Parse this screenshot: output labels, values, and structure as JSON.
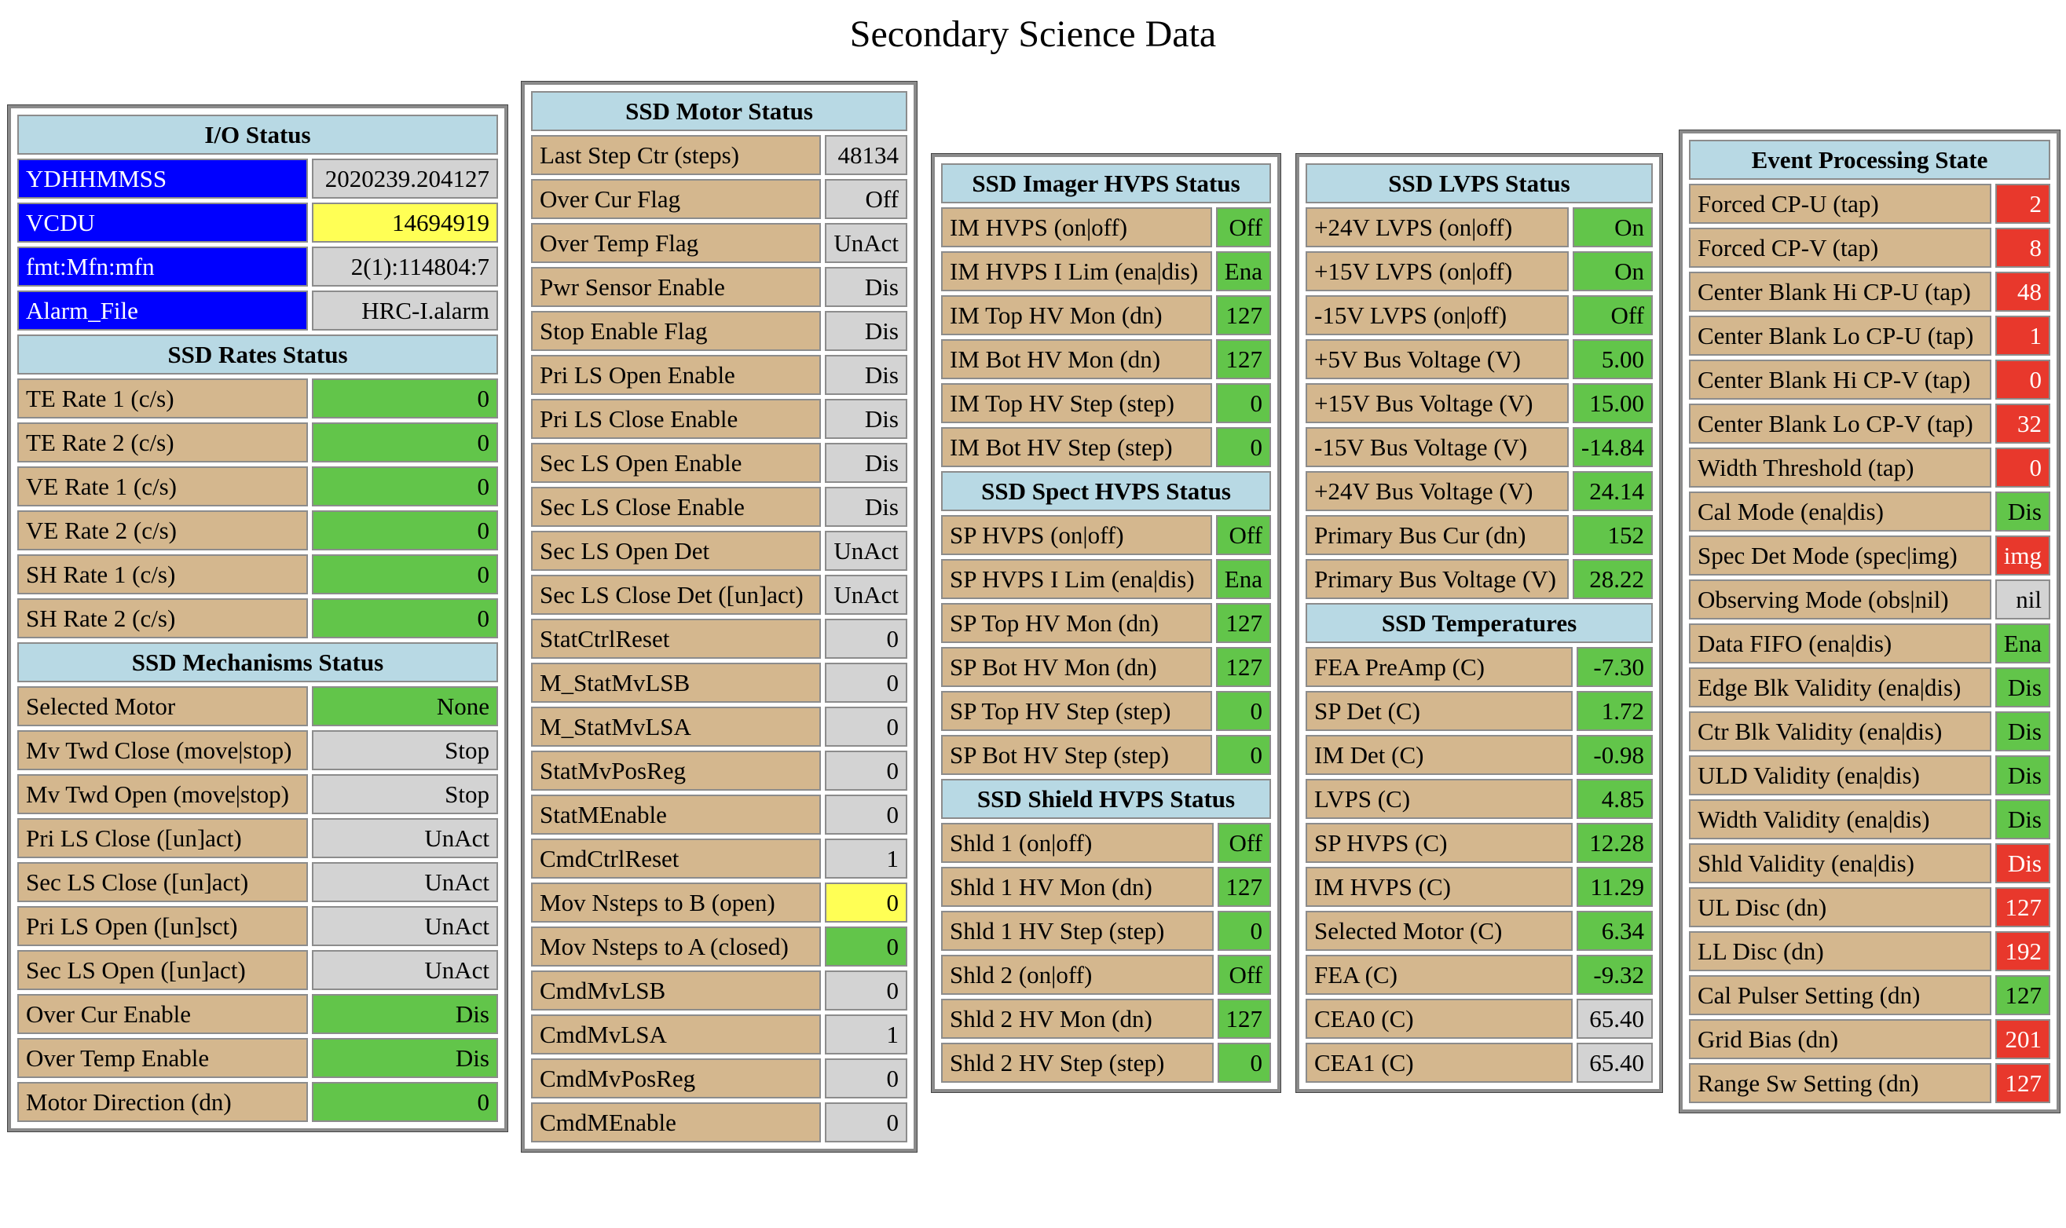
{
  "page_title": "Secondary Science Data",
  "io_status": {
    "header": "I/O Status",
    "rows": [
      {
        "label": "YDHHMMSS",
        "value": "2020239.204127",
        "label_style": "blue",
        "status": "gray"
      },
      {
        "label": "VCDU",
        "value": "14694919",
        "label_style": "blue",
        "status": "yellow"
      },
      {
        "label": "fmt:Mfn:mfn",
        "value": "2(1):114804:7",
        "label_style": "blue",
        "status": "gray"
      },
      {
        "label": "Alarm_File",
        "value": "HRC-I.alarm",
        "label_style": "blue",
        "status": "gray"
      }
    ]
  },
  "rates_status": {
    "header": "SSD Rates Status",
    "rows": [
      {
        "label": "TE Rate 1 (c/s)",
        "value": "0",
        "status": "green"
      },
      {
        "label": "TE Rate 2 (c/s)",
        "value": "0",
        "status": "green"
      },
      {
        "label": "VE Rate 1 (c/s)",
        "value": "0",
        "status": "green"
      },
      {
        "label": "VE Rate 2 (c/s)",
        "value": "0",
        "status": "green"
      },
      {
        "label": "SH Rate 1 (c/s)",
        "value": "0",
        "status": "green"
      },
      {
        "label": "SH Rate 2 (c/s)",
        "value": "0",
        "status": "green"
      }
    ]
  },
  "mechanisms_status": {
    "header": "SSD Mechanisms Status",
    "rows": [
      {
        "label": "Selected Motor",
        "value": "None",
        "status": "green"
      },
      {
        "label": "Mv Twd Close (move|stop)",
        "value": "Stop",
        "status": "gray"
      },
      {
        "label": "Mv Twd Open (move|stop)",
        "value": "Stop",
        "status": "gray"
      },
      {
        "label": "Pri LS Close ([un]act)",
        "value": "UnAct",
        "status": "gray"
      },
      {
        "label": "Sec LS Close ([un]act)",
        "value": "UnAct",
        "status": "gray"
      },
      {
        "label": "Pri LS Open ([un]sct)",
        "value": "UnAct",
        "status": "gray"
      },
      {
        "label": "Sec LS Open ([un]act)",
        "value": "UnAct",
        "status": "gray"
      },
      {
        "label": "Over Cur Enable",
        "value": "Dis",
        "status": "green"
      },
      {
        "label": "Over Temp Enable",
        "value": "Dis",
        "status": "green"
      },
      {
        "label": "Motor Direction (dn)",
        "value": "0",
        "status": "green"
      }
    ]
  },
  "motor_status": {
    "header": "SSD Motor Status",
    "rows": [
      {
        "label": "Last Step Ctr (steps)",
        "value": "48134",
        "status": "gray"
      },
      {
        "label": "Over Cur Flag",
        "value": "Off",
        "status": "gray"
      },
      {
        "label": "Over Temp Flag",
        "value": "UnAct",
        "status": "gray"
      },
      {
        "label": "Pwr Sensor Enable",
        "value": "Dis",
        "status": "gray"
      },
      {
        "label": "Stop Enable Flag",
        "value": "Dis",
        "status": "gray"
      },
      {
        "label": "Pri LS Open Enable",
        "value": "Dis",
        "status": "gray"
      },
      {
        "label": "Pri LS Close Enable",
        "value": "Dis",
        "status": "gray"
      },
      {
        "label": "Sec LS Open Enable",
        "value": "Dis",
        "status": "gray"
      },
      {
        "label": "Sec LS Close Enable",
        "value": "Dis",
        "status": "gray"
      },
      {
        "label": "Sec LS Open Det",
        "value": "UnAct",
        "status": "gray"
      },
      {
        "label": "Sec LS Close Det ([un]act)",
        "value": "UnAct",
        "status": "gray"
      },
      {
        "label": "StatCtrlReset",
        "value": "0",
        "status": "gray"
      },
      {
        "label": "M_StatMvLSB",
        "value": "0",
        "status": "gray"
      },
      {
        "label": "M_StatMvLSA",
        "value": "0",
        "status": "gray"
      },
      {
        "label": "StatMvPosReg",
        "value": "0",
        "status": "gray"
      },
      {
        "label": "StatMEnable",
        "value": "0",
        "status": "gray"
      },
      {
        "label": "CmdCtrlReset",
        "value": "1",
        "status": "gray"
      },
      {
        "label": "Mov Nsteps to B (open)",
        "value": "0",
        "status": "yellow"
      },
      {
        "label": "Mov Nsteps to A (closed)",
        "value": "0",
        "status": "green"
      },
      {
        "label": "CmdMvLSB",
        "value": "0",
        "status": "gray"
      },
      {
        "label": "CmdMvLSA",
        "value": "1",
        "status": "gray"
      },
      {
        "label": "CmdMvPosReg",
        "value": "0",
        "status": "gray"
      },
      {
        "label": "CmdMEnable",
        "value": "0",
        "status": "gray"
      }
    ]
  },
  "imager_hvps": {
    "header": "SSD Imager HVPS Status",
    "rows": [
      {
        "label": "IM HVPS (on|off)",
        "value": "Off",
        "status": "green"
      },
      {
        "label": "IM HVPS I Lim (ena|dis)",
        "value": "Ena",
        "status": "green"
      },
      {
        "label": "IM Top HV Mon (dn)",
        "value": "127",
        "status": "green"
      },
      {
        "label": "IM Bot HV Mon (dn)",
        "value": "127",
        "status": "green"
      },
      {
        "label": "IM Top HV Step (step)",
        "value": "0",
        "status": "green"
      },
      {
        "label": "IM Bot HV Step (step)",
        "value": "0",
        "status": "green"
      }
    ]
  },
  "spect_hvps": {
    "header": "SSD Spect HVPS Status",
    "rows": [
      {
        "label": "SP HVPS (on|off)",
        "value": "Off",
        "status": "green"
      },
      {
        "label": "SP HVPS I Lim (ena|dis)",
        "value": "Ena",
        "status": "green"
      },
      {
        "label": "SP Top HV Mon (dn)",
        "value": "127",
        "status": "green"
      },
      {
        "label": "SP Bot HV Mon (dn)",
        "value": "127",
        "status": "green"
      },
      {
        "label": "SP Top HV Step (step)",
        "value": "0",
        "status": "green"
      },
      {
        "label": "SP Bot HV Step (step)",
        "value": "0",
        "status": "green"
      }
    ]
  },
  "shield_hvps": {
    "header": "SSD Shield HVPS Status",
    "rows": [
      {
        "label": "Shld 1 (on|off)",
        "value": "Off",
        "status": "green"
      },
      {
        "label": "Shld 1 HV Mon (dn)",
        "value": "127",
        "status": "green"
      },
      {
        "label": "Shld 1 HV Step (step)",
        "value": "0",
        "status": "green"
      },
      {
        "label": "Shld 2 (on|off)",
        "value": "Off",
        "status": "green"
      },
      {
        "label": "Shld 2 HV Mon (dn)",
        "value": "127",
        "status": "green"
      },
      {
        "label": "Shld 2 HV Step (step)",
        "value": "0",
        "status": "green"
      }
    ]
  },
  "lvps_status": {
    "header": "SSD LVPS Status",
    "rows": [
      {
        "label": "+24V LVPS (on|off)",
        "value": "On",
        "status": "green"
      },
      {
        "label": "+15V LVPS (on|off)",
        "value": "On",
        "status": "green"
      },
      {
        "label": "-15V LVPS (on|off)",
        "value": "Off",
        "status": "green"
      },
      {
        "label": "+5V Bus Voltage (V)",
        "value": "5.00",
        "status": "green"
      },
      {
        "label": "+15V Bus Voltage (V)",
        "value": "15.00",
        "status": "green"
      },
      {
        "label": "-15V Bus Voltage (V)",
        "value": "-14.84",
        "status": "green"
      },
      {
        "label": "+24V Bus Voltage (V)",
        "value": "24.14",
        "status": "green"
      },
      {
        "label": "Primary Bus Cur (dn)",
        "value": "152",
        "status": "green"
      },
      {
        "label": "Primary Bus Voltage (V)",
        "value": "28.22",
        "status": "green"
      }
    ]
  },
  "temperatures": {
    "header": "SSD Temperatures",
    "rows": [
      {
        "label": "FEA PreAmp (C)",
        "value": "-7.30",
        "status": "green"
      },
      {
        "label": "SP Det (C)",
        "value": "1.72",
        "status": "green"
      },
      {
        "label": "IM Det (C)",
        "value": "-0.98",
        "status": "green"
      },
      {
        "label": "LVPS (C)",
        "value": "4.85",
        "status": "green"
      },
      {
        "label": "SP HVPS (C)",
        "value": "12.28",
        "status": "green"
      },
      {
        "label": "IM HVPS (C)",
        "value": "11.29",
        "status": "green"
      },
      {
        "label": "Selected Motor (C)",
        "value": "6.34",
        "status": "green"
      },
      {
        "label": "FEA (C)",
        "value": "-9.32",
        "status": "green"
      },
      {
        "label": "CEA0 (C)",
        "value": "65.40",
        "status": "gray"
      },
      {
        "label": "CEA1 (C)",
        "value": "65.40",
        "status": "gray"
      }
    ]
  },
  "event_processing": {
    "header": "Event Processing State",
    "rows": [
      {
        "label": "Forced CP-U (tap)",
        "value": "2",
        "status": "red"
      },
      {
        "label": "Forced CP-V (tap)",
        "value": "8",
        "status": "red"
      },
      {
        "label": "Center Blank Hi CP-U (tap)",
        "value": "48",
        "status": "red"
      },
      {
        "label": "Center Blank Lo CP-U (tap)",
        "value": "1",
        "status": "red"
      },
      {
        "label": "Center Blank Hi CP-V (tap)",
        "value": "0",
        "status": "red"
      },
      {
        "label": "Center Blank Lo CP-V (tap)",
        "value": "32",
        "status": "red"
      },
      {
        "label": "Width Threshold (tap)",
        "value": "0",
        "status": "red"
      },
      {
        "label": "Cal Mode (ena|dis)",
        "value": "Dis",
        "status": "green"
      },
      {
        "label": "Spec Det Mode (spec|img)",
        "value": "img",
        "status": "red"
      },
      {
        "label": "Observing Mode (obs|nil)",
        "value": "nil",
        "status": "gray"
      },
      {
        "label": "Data FIFO (ena|dis)",
        "value": "Ena",
        "status": "green"
      },
      {
        "label": "Edge Blk Validity (ena|dis)",
        "value": "Dis",
        "status": "green"
      },
      {
        "label": "Ctr Blk Validity (ena|dis)",
        "value": "Dis",
        "status": "green"
      },
      {
        "label": "ULD Validity (ena|dis)",
        "value": "Dis",
        "status": "green"
      },
      {
        "label": "Width Validity (ena|dis)",
        "value": "Dis",
        "status": "green"
      },
      {
        "label": "Shld Validity (ena|dis)",
        "value": "Dis",
        "status": "red"
      },
      {
        "label": "UL Disc (dn)",
        "value": "127",
        "status": "red"
      },
      {
        "label": "LL Disc (dn)",
        "value": "192",
        "status": "red"
      },
      {
        "label": "Cal Pulser Setting (dn)",
        "value": "127",
        "status": "green"
      },
      {
        "label": "Grid Bias (dn)",
        "value": "201",
        "status": "red"
      },
      {
        "label": "Range Sw Setting (dn)",
        "value": "127",
        "status": "red"
      }
    ]
  },
  "colors": {
    "header_bg": "#b8d9e4",
    "label_bg": "#d4b78e",
    "green": "#62c54a",
    "gray": "#d3d3d3",
    "yellow": "#ffff55",
    "red": "#e8382c",
    "blue": "#0000ff"
  }
}
